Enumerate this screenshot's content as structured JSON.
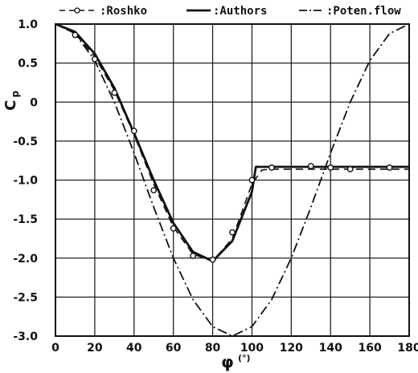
{
  "chart_data": {
    "type": "line",
    "title": "",
    "xlabel": "φ",
    "xlabel_unit": "(°)",
    "ylabel": "Cp",
    "xlim": [
      0,
      180
    ],
    "ylim": [
      -3.0,
      1.0
    ],
    "grid": true,
    "legend_position": "top",
    "x_ticks": [
      "0",
      "20",
      "40",
      "60",
      "80",
      "100",
      "120",
      "140",
      "160",
      "180"
    ],
    "y_ticks": [
      "1.0",
      "0.5",
      "0",
      "-0.5",
      "-1.0",
      "-1.5",
      "-2.0",
      "-2.5",
      "-3.0"
    ],
    "x_tick_values": [
      0,
      20,
      40,
      60,
      80,
      100,
      120,
      140,
      160,
      180
    ],
    "y_tick_values": [
      1.0,
      0.5,
      0,
      -0.5,
      -1.0,
      -1.5,
      -2.0,
      -2.5,
      -3.0
    ],
    "series": [
      {
        "name": ":Roshko",
        "style": "dashed",
        "marker": "circle",
        "color": "#111111",
        "x": [
          0,
          10,
          20,
          30,
          40,
          50,
          60,
          70,
          80,
          90,
          100,
          105,
          110,
          120,
          130,
          140,
          150,
          160,
          170,
          180
        ],
        "y": [
          1.0,
          0.88,
          0.58,
          0.15,
          -0.42,
          -1.05,
          -1.6,
          -1.95,
          -2.04,
          -1.75,
          -1.05,
          -0.87,
          -0.86,
          -0.86,
          -0.86,
          -0.86,
          -0.86,
          -0.86,
          -0.86,
          -0.86
        ]
      },
      {
        "name": ":Authors",
        "style": "solid",
        "color": "#111111",
        "x": [
          0,
          10,
          20,
          30,
          40,
          50,
          60,
          70,
          80,
          90,
          100,
          102,
          110,
          120,
          130,
          140,
          150,
          160,
          170,
          180
        ],
        "y": [
          1.0,
          0.9,
          0.62,
          0.18,
          -0.4,
          -1.0,
          -1.55,
          -1.92,
          -2.04,
          -1.78,
          -1.15,
          -0.83,
          -0.83,
          -0.83,
          -0.83,
          -0.83,
          -0.83,
          -0.83,
          -0.83,
          -0.83
        ]
      },
      {
        "name": ":Poten.flow",
        "style": "dashdot",
        "color": "#111111",
        "x": [
          0,
          10,
          20,
          30,
          40,
          50,
          60,
          70,
          80,
          90,
          100,
          110,
          120,
          130,
          140,
          150,
          160,
          170,
          180
        ],
        "y": [
          1.0,
          0.879,
          0.532,
          0.0,
          -0.653,
          -1.347,
          -2.0,
          -2.532,
          -2.879,
          -3.0,
          -2.879,
          -2.532,
          -2.0,
          -1.347,
          -0.653,
          0.0,
          0.532,
          0.879,
          1.0
        ]
      }
    ],
    "markers": {
      "series": ":Roshko",
      "x": [
        10,
        20,
        30,
        40,
        50,
        60,
        70,
        80,
        90,
        100,
        110,
        130,
        140,
        150,
        170
      ],
      "y": [
        0.86,
        0.55,
        0.12,
        -0.37,
        -1.13,
        -1.62,
        -1.97,
        -2.02,
        -1.67,
        -1.0,
        -0.84,
        -0.82,
        -0.84,
        -0.86,
        -0.84
      ]
    }
  }
}
